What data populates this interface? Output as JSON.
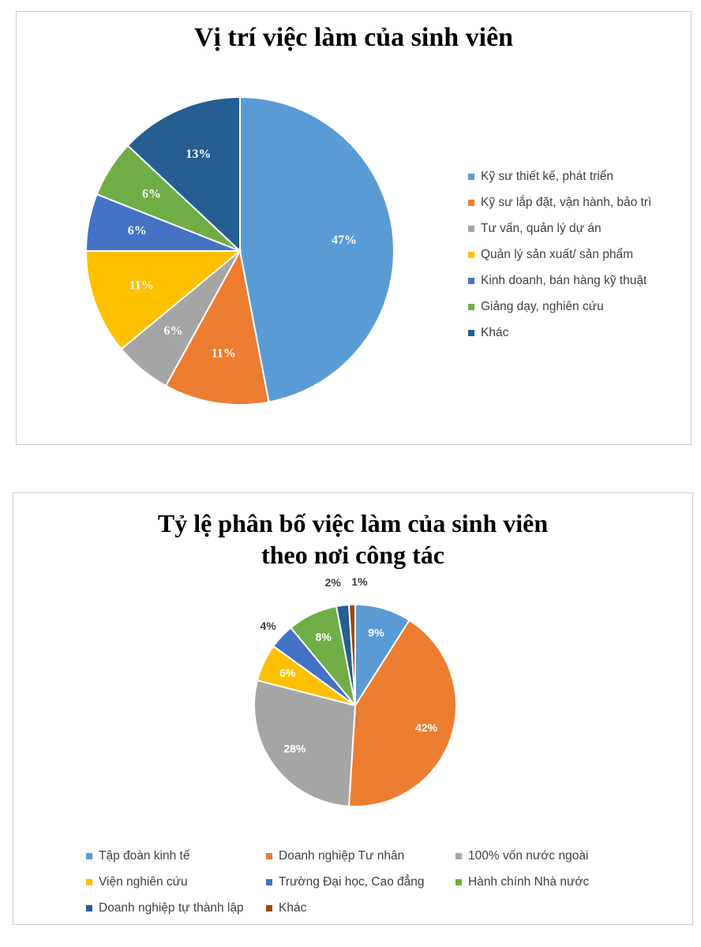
{
  "chart_data": [
    {
      "type": "pie",
      "title": "Vị trí việc làm của sinh viên",
      "categories": [
        "Kỹ sư thiết kế, phát triển",
        "Kỹ sư lắp đặt, vận hành, bảo trì",
        "Tư vấn, quản lý dự án",
        "Quản lý sản xuất/ sản phẩm",
        "Kinh doanh, bán hàng kỹ thuật",
        "Giảng dạy, nghiên cứu",
        "Khác"
      ],
      "values": [
        47,
        11,
        6,
        11,
        6,
        6,
        13
      ],
      "labels": [
        "47%",
        "11%",
        "6%",
        "11%",
        "6%",
        "6%",
        "13%"
      ],
      "colors": [
        "#5B9BD5",
        "#ED7D31",
        "#A5A5A5",
        "#FFC000",
        "#4472C4",
        "#70AD47",
        "#255E91"
      ],
      "legend": "right"
    },
    {
      "type": "pie",
      "title": "Tỷ lệ phân bố việc làm của sinh viên theo nơi công tác",
      "title_lines": [
        "Tỷ lệ phân bố việc làm của sinh viên",
        "theo nơi công tác"
      ],
      "categories": [
        "Tập đoàn kinh tế",
        "Doanh nghiệp Tư nhân",
        "100% vốn nước ngoài",
        "Viện nghiên cứu",
        "Trường Đại học, Cao đẳng",
        "Hành chính Nhà nước",
        "Doanh nghiệp tự thành lập",
        "Khác"
      ],
      "values": [
        9,
        42,
        28,
        6,
        4,
        8,
        2,
        1
      ],
      "labels": [
        "9%",
        "42%",
        "28%",
        "6%",
        "4%",
        "8%",
        "2%",
        "1%"
      ],
      "colors": [
        "#5B9BD5",
        "#ED7D31",
        "#A5A5A5",
        "#FFC000",
        "#4472C4",
        "#70AD47",
        "#255E91",
        "#9E480E"
      ],
      "legend": "bottom"
    }
  ]
}
